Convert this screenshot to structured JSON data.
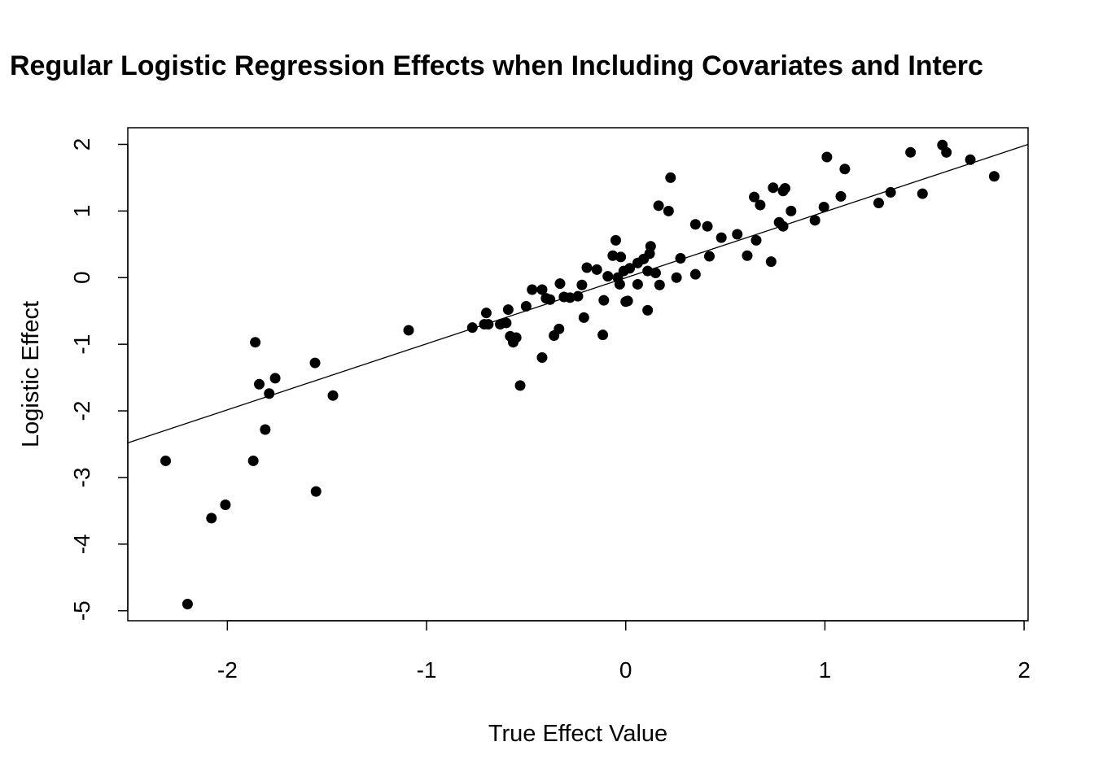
{
  "chart_data": {
    "type": "scatter",
    "title": "Regular Logistic Regression Effects when Including Covariates and Interc",
    "xlabel": "True Effect Value",
    "ylabel": "Logistic Effect",
    "xlim": [
      -2.5,
      2.02
    ],
    "ylim": [
      -5.15,
      2.25
    ],
    "xticks": [
      -2,
      -1,
      0,
      1,
      2
    ],
    "yticks": [
      -5,
      -4,
      -3,
      -2,
      -1,
      0,
      1,
      2
    ],
    "xtick_labels": [
      "-2",
      "-1",
      "0",
      "1",
      "2"
    ],
    "ytick_labels": [
      "-5",
      "-4",
      "-3",
      "-2",
      "-1",
      "0",
      "1",
      "2"
    ],
    "reference_line": {
      "from": [
        -2.5,
        -2.48
      ],
      "to": [
        2.02,
        2.0
      ]
    },
    "point_color": "#000000",
    "grid": false,
    "legend": "none",
    "series": [
      {
        "points": [
          [
            -2.31,
            -2.75
          ],
          [
            -2.2,
            -4.9
          ],
          [
            -2.08,
            -3.61
          ],
          [
            -2.01,
            -3.41
          ],
          [
            -1.87,
            -2.75
          ],
          [
            -1.86,
            -0.97
          ],
          [
            -1.84,
            -1.6
          ],
          [
            -1.81,
            -2.28
          ],
          [
            -1.79,
            -1.74
          ],
          [
            -1.76,
            -1.51
          ],
          [
            -1.56,
            -1.28
          ],
          [
            -1.555,
            -3.21
          ],
          [
            -1.47,
            -1.77
          ],
          [
            -1.09,
            -0.79
          ],
          [
            -0.77,
            -0.75
          ],
          [
            -0.71,
            -0.7
          ],
          [
            -0.7,
            -0.53
          ],
          [
            -0.69,
            -0.7
          ],
          [
            -0.63,
            -0.7
          ],
          [
            -0.6,
            -0.68
          ],
          [
            -0.59,
            -0.48
          ],
          [
            -0.58,
            -0.88
          ],
          [
            -0.565,
            -0.97
          ],
          [
            -0.55,
            -0.9
          ],
          [
            -0.53,
            -1.62
          ],
          [
            -0.5,
            -0.43
          ],
          [
            -0.47,
            -0.18
          ],
          [
            -0.42,
            -1.2
          ],
          [
            -0.42,
            -0.18
          ],
          [
            -0.4,
            -0.31
          ],
          [
            -0.38,
            -0.33
          ],
          [
            -0.36,
            -0.87
          ],
          [
            -0.335,
            -0.77
          ],
          [
            -0.33,
            -0.09
          ],
          [
            -0.31,
            -0.29
          ],
          [
            -0.28,
            -0.3
          ],
          [
            -0.24,
            -0.28
          ],
          [
            -0.22,
            -0.11
          ],
          [
            -0.21,
            -0.6
          ],
          [
            -0.195,
            0.15
          ],
          [
            -0.145,
            0.12
          ],
          [
            -0.115,
            -0.86
          ],
          [
            -0.11,
            -0.34
          ],
          [
            -0.09,
            0.02
          ],
          [
            -0.065,
            0.33
          ],
          [
            -0.05,
            0.56
          ],
          [
            -0.04,
            0.0
          ],
          [
            -0.03,
            -0.1
          ],
          [
            -0.025,
            0.31
          ],
          [
            -0.01,
            0.1
          ],
          [
            0.0,
            -0.36
          ],
          [
            0.01,
            -0.35
          ],
          [
            0.02,
            0.14
          ],
          [
            0.06,
            -0.1
          ],
          [
            0.06,
            0.22
          ],
          [
            0.09,
            0.28
          ],
          [
            0.11,
            -0.49
          ],
          [
            0.11,
            0.1
          ],
          [
            0.12,
            0.36
          ],
          [
            0.125,
            0.47
          ],
          [
            0.15,
            0.07
          ],
          [
            0.165,
            1.08
          ],
          [
            0.17,
            -0.11
          ],
          [
            0.215,
            1.0
          ],
          [
            0.225,
            1.5
          ],
          [
            0.255,
            0.0
          ],
          [
            0.275,
            0.29
          ],
          [
            0.35,
            0.05
          ],
          [
            0.35,
            0.8
          ],
          [
            0.41,
            0.77
          ],
          [
            0.42,
            0.32
          ],
          [
            0.48,
            0.6
          ],
          [
            0.56,
            0.65
          ],
          [
            0.61,
            0.33
          ],
          [
            0.645,
            1.21
          ],
          [
            0.655,
            0.56
          ],
          [
            0.675,
            1.09
          ],
          [
            0.73,
            0.24
          ],
          [
            0.74,
            1.35
          ],
          [
            0.77,
            0.83
          ],
          [
            0.79,
            0.77
          ],
          [
            0.79,
            1.3
          ],
          [
            0.8,
            1.34
          ],
          [
            0.83,
            1.0
          ],
          [
            0.95,
            0.86
          ],
          [
            0.995,
            1.06
          ],
          [
            1.01,
            1.81
          ],
          [
            1.08,
            1.22
          ],
          [
            1.1,
            1.63
          ],
          [
            1.27,
            1.12
          ],
          [
            1.33,
            1.28
          ],
          [
            1.43,
            1.88
          ],
          [
            1.49,
            1.26
          ],
          [
            1.59,
            1.99
          ],
          [
            1.61,
            1.88
          ],
          [
            1.73,
            1.77
          ],
          [
            1.85,
            1.52
          ]
        ]
      }
    ]
  }
}
